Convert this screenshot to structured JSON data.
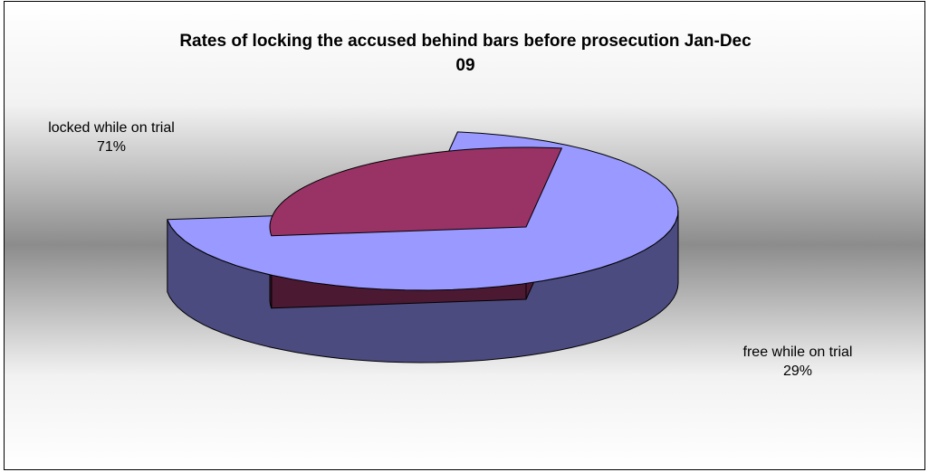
{
  "chart_data": {
    "type": "pie",
    "title": "Rates of locking the accused behind bars before prosecution Jan-Dec 09",
    "categories": [
      "locked while on trial",
      "free while on trial"
    ],
    "values": [
      71,
      29
    ],
    "value_labels": [
      "71%",
      "29%"
    ],
    "colors": {
      "top": [
        "#9999ff",
        "#993366"
      ],
      "side": [
        "#4b4b7f",
        "#4c1933"
      ]
    },
    "three_d": true,
    "exploded": true
  }
}
